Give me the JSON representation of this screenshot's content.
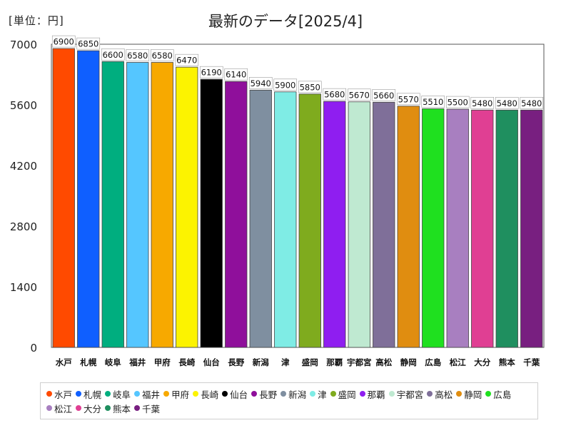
{
  "header": {
    "unit": "[単位：円]"
  },
  "chart_data": {
    "type": "bar",
    "title": "最新のデータ[2025/4]",
    "xlabel": "",
    "ylabel": "",
    "ylim": [
      0,
      7000
    ],
    "yticks": [
      0,
      1400,
      2800,
      4200,
      5600,
      7000
    ],
    "grid": false,
    "legend_position": "bottom",
    "categories": [
      "水戸",
      "札幌",
      "岐阜",
      "福井",
      "甲府",
      "長崎",
      "仙台",
      "長野",
      "新潟",
      "津",
      "盛岡",
      "那覇",
      "宇都宮",
      "高松",
      "静岡",
      "広島",
      "松江",
      "大分",
      "熊本",
      "千葉"
    ],
    "values": [
      6900,
      6850,
      6600,
      6580,
      6580,
      6470,
      6190,
      6140,
      5940,
      5900,
      5850,
      5680,
      5670,
      5660,
      5570,
      5510,
      5500,
      5480,
      5480,
      5480
    ],
    "colors": [
      "#ff4a00",
      "#0f5fff",
      "#00ae7f",
      "#55c6ff",
      "#f7a900",
      "#fcf300",
      "#000000",
      "#8f0f9b",
      "#7f8fa0",
      "#7fece5",
      "#7fab1e",
      "#8f1ef0",
      "#bfe9d1",
      "#7f6f99",
      "#e08d10",
      "#1fe01f",
      "#a87fc0",
      "#e03f93",
      "#1f8f5f",
      "#781f80"
    ]
  }
}
